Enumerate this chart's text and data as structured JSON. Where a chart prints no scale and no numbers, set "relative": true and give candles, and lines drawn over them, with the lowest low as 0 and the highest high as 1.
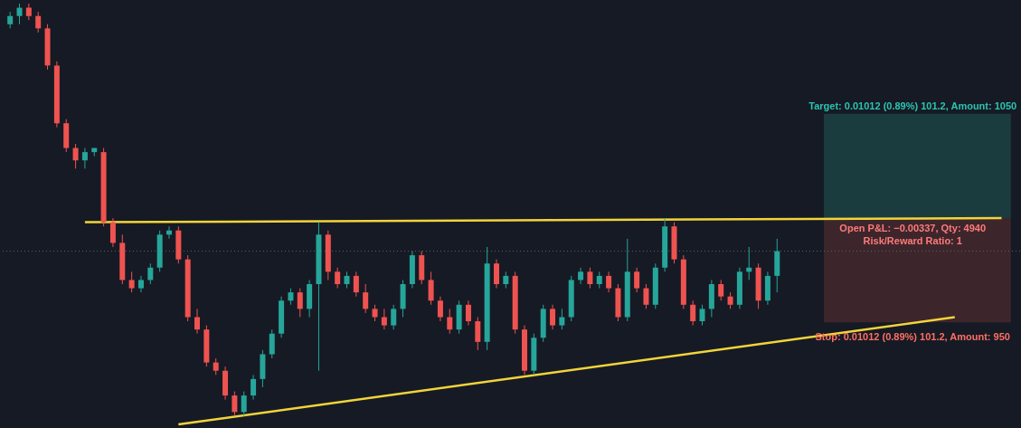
{
  "chart_data": {
    "type": "candlestick",
    "relative": true,
    "tick_labels": false,
    "categories": [
      null,
      null,
      null,
      null,
      null,
      null,
      null,
      null,
      null,
      null,
      null,
      null,
      null,
      null,
      null,
      null,
      null,
      null,
      null,
      null,
      null,
      null,
      null,
      null,
      null,
      null,
      null,
      null,
      null,
      null,
      null,
      null,
      null,
      null,
      null,
      null,
      null,
      null,
      null,
      null,
      null,
      null,
      null,
      null,
      null,
      null,
      null,
      null,
      null,
      null,
      null,
      null,
      null,
      null,
      null,
      null,
      null,
      null,
      null,
      null,
      null,
      null,
      null,
      null,
      null,
      null,
      null,
      null,
      null,
      null,
      null,
      null,
      null,
      null,
      null,
      null,
      null,
      null,
      null,
      null,
      null,
      null,
      null,
      null,
      null,
      null,
      null,
      null,
      null,
      null,
      null,
      null,
      null,
      null,
      null,
      null,
      null,
      null,
      null,
      null,
      null,
      null,
      null,
      null,
      null,
      null,
      null,
      null
    ],
    "ohlc": [
      [
        0.95,
        0.98,
        0.94,
        0.97
      ],
      [
        0.97,
        1.0,
        0.95,
        0.99
      ],
      [
        0.99,
        1.0,
        0.96,
        0.97
      ],
      [
        0.97,
        0.98,
        0.93,
        0.94
      ],
      [
        0.94,
        0.95,
        0.84,
        0.85
      ],
      [
        0.85,
        0.86,
        0.7,
        0.71
      ],
      [
        0.71,
        0.72,
        0.64,
        0.65
      ],
      [
        0.65,
        0.66,
        0.6,
        0.62
      ],
      [
        0.62,
        0.65,
        0.6,
        0.64
      ],
      [
        0.64,
        0.65,
        0.63,
        0.65
      ],
      [
        0.64,
        0.65,
        0.46,
        0.47
      ],
      [
        0.47,
        0.48,
        0.41,
        0.42
      ],
      [
        0.42,
        0.44,
        0.32,
        0.33
      ],
      [
        0.33,
        0.35,
        0.3,
        0.31
      ],
      [
        0.31,
        0.34,
        0.3,
        0.33
      ],
      [
        0.33,
        0.37,
        0.32,
        0.36
      ],
      [
        0.36,
        0.45,
        0.35,
        0.44
      ],
      [
        0.44,
        0.46,
        0.43,
        0.45
      ],
      [
        0.45,
        0.46,
        0.37,
        0.38
      ],
      [
        0.38,
        0.39,
        0.23,
        0.24
      ],
      [
        0.24,
        0.26,
        0.2,
        0.21
      ],
      [
        0.21,
        0.22,
        0.12,
        0.13
      ],
      [
        0.13,
        0.14,
        0.1,
        0.11
      ],
      [
        0.11,
        0.12,
        0.04,
        0.05
      ],
      [
        0.05,
        0.06,
        0.0,
        0.01
      ],
      [
        0.01,
        0.06,
        0.0,
        0.05
      ],
      [
        0.05,
        0.1,
        0.04,
        0.09
      ],
      [
        0.09,
        0.16,
        0.07,
        0.15
      ],
      [
        0.15,
        0.21,
        0.14,
        0.2
      ],
      [
        0.2,
        0.29,
        0.19,
        0.28
      ],
      [
        0.28,
        0.31,
        0.27,
        0.3
      ],
      [
        0.3,
        0.31,
        0.24,
        0.26
      ],
      [
        0.26,
        0.33,
        0.24,
        0.32
      ],
      [
        0.32,
        0.47,
        0.11,
        0.44
      ],
      [
        0.44,
        0.45,
        0.33,
        0.35
      ],
      [
        0.35,
        0.36,
        0.31,
        0.32
      ],
      [
        0.32,
        0.35,
        0.31,
        0.34
      ],
      [
        0.34,
        0.35,
        0.29,
        0.3
      ],
      [
        0.3,
        0.32,
        0.25,
        0.26
      ],
      [
        0.26,
        0.27,
        0.23,
        0.24
      ],
      [
        0.24,
        0.26,
        0.21,
        0.22
      ],
      [
        0.22,
        0.27,
        0.21,
        0.26
      ],
      [
        0.26,
        0.33,
        0.24,
        0.32
      ],
      [
        0.32,
        0.4,
        0.31,
        0.39
      ],
      [
        0.39,
        0.4,
        0.32,
        0.33
      ],
      [
        0.33,
        0.35,
        0.27,
        0.28
      ],
      [
        0.28,
        0.29,
        0.23,
        0.24
      ],
      [
        0.24,
        0.26,
        0.2,
        0.21
      ],
      [
        0.21,
        0.28,
        0.2,
        0.27
      ],
      [
        0.27,
        0.28,
        0.22,
        0.23
      ],
      [
        0.23,
        0.24,
        0.16,
        0.18
      ],
      [
        0.18,
        0.41,
        0.16,
        0.37
      ],
      [
        0.37,
        0.38,
        0.31,
        0.32
      ],
      [
        0.32,
        0.35,
        0.31,
        0.34
      ],
      [
        0.34,
        0.35,
        0.2,
        0.21
      ],
      [
        0.21,
        0.22,
        0.1,
        0.11
      ],
      [
        0.11,
        0.2,
        0.1,
        0.19
      ],
      [
        0.19,
        0.27,
        0.18,
        0.26
      ],
      [
        0.26,
        0.27,
        0.21,
        0.22
      ],
      [
        0.22,
        0.26,
        0.21,
        0.24
      ],
      [
        0.24,
        0.34,
        0.23,
        0.33
      ],
      [
        0.33,
        0.36,
        0.32,
        0.35
      ],
      [
        0.35,
        0.36,
        0.31,
        0.32
      ],
      [
        0.32,
        0.35,
        0.31,
        0.34
      ],
      [
        0.34,
        0.35,
        0.3,
        0.31
      ],
      [
        0.31,
        0.32,
        0.23,
        0.24
      ],
      [
        0.24,
        0.43,
        0.23,
        0.35
      ],
      [
        0.35,
        0.36,
        0.3,
        0.31
      ],
      [
        0.31,
        0.32,
        0.26,
        0.27
      ],
      [
        0.27,
        0.37,
        0.26,
        0.36
      ],
      [
        0.36,
        0.48,
        0.35,
        0.46
      ],
      [
        0.46,
        0.47,
        0.37,
        0.38
      ],
      [
        0.38,
        0.39,
        0.26,
        0.27
      ],
      [
        0.27,
        0.28,
        0.22,
        0.23
      ],
      [
        0.23,
        0.27,
        0.22,
        0.26
      ],
      [
        0.26,
        0.33,
        0.24,
        0.32
      ],
      [
        0.32,
        0.33,
        0.28,
        0.29
      ],
      [
        0.29,
        0.3,
        0.26,
        0.27
      ],
      [
        0.27,
        0.36,
        0.26,
        0.35
      ],
      [
        0.35,
        0.41,
        0.33,
        0.36
      ],
      [
        0.36,
        0.37,
        0.26,
        0.28
      ],
      [
        0.28,
        0.35,
        0.27,
        0.34
      ],
      [
        0.34,
        0.43,
        0.3,
        0.4
      ],
      null,
      null,
      null,
      null,
      null,
      null,
      null,
      null,
      null,
      null,
      null,
      null,
      null,
      null,
      null,
      null,
      null,
      null,
      null,
      null,
      null,
      null,
      null,
      null,
      null
    ],
    "colors": [
      "#26a69a",
      "#26a69a",
      "#ef5350",
      "#ef5350",
      "#ef5350",
      "#ef5350",
      "#ef5350",
      "#ef5350",
      "#26a69a",
      "#26a69a",
      "#ef5350",
      "#ef5350",
      "#ef5350",
      "#ef5350",
      "#26a69a",
      "#26a69a",
      "#26a69a",
      "#26a69a",
      "#ef5350",
      "#ef5350",
      "#ef5350",
      "#ef5350",
      "#ef5350",
      "#ef5350",
      "#ef5350",
      "#26a69a",
      "#26a69a",
      "#26a69a",
      "#26a69a",
      "#26a69a",
      "#26a69a",
      "#ef5350",
      "#26a69a",
      "#26a69a",
      "#ef5350",
      "#ef5350",
      "#26a69a",
      "#ef5350",
      "#ef5350",
      "#ef5350",
      "#ef5350",
      "#26a69a",
      "#26a69a",
      "#26a69a",
      "#ef5350",
      "#ef5350",
      "#ef5350",
      "#ef5350",
      "#26a69a",
      "#ef5350",
      "#ef5350",
      "#26a69a",
      "#ef5350",
      "#26a69a",
      "#ef5350",
      "#ef5350",
      "#26a69a",
      "#26a69a",
      "#ef5350",
      "#26a69a",
      "#26a69a",
      "#26a69a",
      "#ef5350",
      "#26a69a",
      "#ef5350",
      "#ef5350",
      "#26a69a",
      "#ef5350",
      "#ef5350",
      "#26a69a",
      "#26a69a",
      "#ef5350",
      "#ef5350",
      "#ef5350",
      "#26a69a",
      "#26a69a",
      "#ef5350",
      "#ef5350",
      "#26a69a",
      "#26a69a",
      "#ef5350",
      "#26a69a",
      "#26a69a",
      null,
      null,
      null,
      null,
      null,
      null,
      null,
      null,
      null,
      null,
      null,
      null,
      null,
      null,
      null,
      null,
      null,
      null,
      null,
      null,
      null,
      null,
      null,
      null,
      null
    ],
    "series": [
      {
        "type": "line",
        "color": "#1b3c3f",
        "values": [
          null,
          null,
          null,
          null,
          null,
          null,
          null,
          null,
          null,
          null,
          null,
          null,
          null,
          null,
          null,
          null,
          null,
          null,
          null,
          null,
          null,
          null,
          null,
          null,
          null,
          null,
          null,
          null,
          null,
          null,
          null,
          null,
          null,
          null,
          null,
          null,
          null,
          null,
          null,
          null,
          null,
          null,
          null,
          null,
          null,
          null,
          null,
          null,
          null,
          null,
          null,
          null,
          null,
          null,
          null,
          null,
          null,
          null,
          null,
          null,
          null,
          null,
          null,
          null,
          null,
          null,
          null,
          null,
          null,
          null,
          null,
          null,
          null,
          null,
          null,
          null,
          null,
          null,
          null,
          null,
          null,
          null,
          null,
          null,
          null,
          null,
          null,
          0.73,
          null,
          null,
          null,
          null,
          null,
          null,
          null,
          null,
          null,
          null,
          null,
          null,
          null,
          null,
          null,
          null,
          null,
          null,
          null,
          0.73
        ],
        "lower": [
          null,
          null,
          null,
          null,
          null,
          null,
          null,
          null,
          null,
          null,
          null,
          null,
          null,
          null,
          null,
          null,
          null,
          null,
          null,
          null,
          null,
          null,
          null,
          null,
          null,
          null,
          null,
          null,
          null,
          null,
          null,
          null,
          null,
          null,
          null,
          null,
          null,
          null,
          null,
          null,
          null,
          null,
          null,
          null,
          null,
          null,
          null,
          null,
          null,
          null,
          null,
          null,
          null,
          null,
          null,
          null,
          null,
          null,
          null,
          null,
          null,
          null,
          null,
          null,
          null,
          null,
          null,
          null,
          null,
          null,
          null,
          null,
          null,
          null,
          null,
          null,
          null,
          null,
          null,
          null,
          null,
          null,
          null,
          null,
          null,
          null,
          null,
          0.48,
          null,
          null,
          null,
          null,
          null,
          null,
          null,
          null,
          null,
          null,
          null,
          null,
          null,
          null,
          null,
          null,
          null,
          null,
          null,
          0.48
        ],
        "upper": [
          null,
          null,
          null,
          null,
          null,
          null,
          null,
          null,
          null,
          null,
          null,
          null,
          null,
          null,
          null,
          null,
          null,
          null,
          null,
          null,
          null,
          null,
          null,
          null,
          null,
          null,
          null,
          null,
          null,
          null,
          null,
          null,
          null,
          null,
          null,
          null,
          null,
          null,
          null,
          null,
          null,
          null,
          null,
          null,
          null,
          null,
          null,
          null,
          null,
          null,
          null,
          null,
          null,
          null,
          null,
          null,
          null,
          null,
          null,
          null,
          null,
          null,
          null,
          null,
          null,
          null,
          null,
          null,
          null,
          null,
          null,
          null,
          null,
          null,
          null,
          null,
          null,
          null,
          null,
          null,
          null,
          null,
          null,
          null,
          null,
          null,
          null,
          0.73,
          null,
          null,
          null,
          null,
          null,
          null,
          null,
          null,
          null,
          null,
          null,
          null,
          null,
          null,
          null,
          null,
          null,
          null,
          null,
          0.73
        ]
      },
      {
        "type": "line",
        "color": "#3d262b",
        "values": [
          null,
          null,
          null,
          null,
          null,
          null,
          null,
          null,
          null,
          null,
          null,
          null,
          null,
          null,
          null,
          null,
          null,
          null,
          null,
          null,
          null,
          null,
          null,
          null,
          null,
          null,
          null,
          null,
          null,
          null,
          null,
          null,
          null,
          null,
          null,
          null,
          null,
          null,
          null,
          null,
          null,
          null,
          null,
          null,
          null,
          null,
          null,
          null,
          null,
          null,
          null,
          null,
          null,
          null,
          null,
          null,
          null,
          null,
          null,
          null,
          null,
          null,
          null,
          null,
          null,
          null,
          null,
          null,
          null,
          null,
          null,
          null,
          null,
          null,
          null,
          null,
          null,
          null,
          null,
          null,
          null,
          null,
          null,
          null,
          null,
          null,
          null,
          0.23,
          null,
          null,
          null,
          null,
          null,
          null,
          null,
          null,
          null,
          null,
          null,
          null,
          null,
          null,
          null,
          null,
          null,
          null,
          null,
          0.23
        ],
        "lower": [
          null,
          null,
          null,
          null,
          null,
          null,
          null,
          null,
          null,
          null,
          null,
          null,
          null,
          null,
          null,
          null,
          null,
          null,
          null,
          null,
          null,
          null,
          null,
          null,
          null,
          null,
          null,
          null,
          null,
          null,
          null,
          null,
          null,
          null,
          null,
          null,
          null,
          null,
          null,
          null,
          null,
          null,
          null,
          null,
          null,
          null,
          null,
          null,
          null,
          null,
          null,
          null,
          null,
          null,
          null,
          null,
          null,
          null,
          null,
          null,
          null,
          null,
          null,
          null,
          null,
          null,
          null,
          null,
          null,
          null,
          null,
          null,
          null,
          null,
          null,
          null,
          null,
          null,
          null,
          null,
          null,
          null,
          null,
          null,
          null,
          null,
          null,
          0.23,
          null,
          null,
          null,
          null,
          null,
          null,
          null,
          null,
          null,
          null,
          null,
          null,
          null,
          null,
          null,
          null,
          null,
          null,
          null,
          0.23
        ],
        "upper": [
          null,
          null,
          null,
          null,
          null,
          null,
          null,
          null,
          null,
          null,
          null,
          null,
          null,
          null,
          null,
          null,
          null,
          null,
          null,
          null,
          null,
          null,
          null,
          null,
          null,
          null,
          null,
          null,
          null,
          null,
          null,
          null,
          null,
          null,
          null,
          null,
          null,
          null,
          null,
          null,
          null,
          null,
          null,
          null,
          null,
          null,
          null,
          null,
          null,
          null,
          null,
          null,
          null,
          null,
          null,
          null,
          null,
          null,
          null,
          null,
          null,
          null,
          null,
          null,
          null,
          null,
          null,
          null,
          null,
          null,
          null,
          null,
          null,
          null,
          null,
          null,
          null,
          null,
          null,
          null,
          null,
          null,
          null,
          null,
          null,
          null,
          null,
          0.48,
          null,
          null,
          null,
          null,
          null,
          null,
          null,
          null,
          null,
          null,
          null,
          null,
          null,
          null,
          null,
          null,
          null,
          null,
          null,
          0.48
        ]
      },
      {
        "type": "line",
        "color": "#f2d43a",
        "values": [
          null,
          null,
          null,
          null,
          null,
          null,
          null,
          null,
          0.47,
          null,
          null,
          null,
          null,
          null,
          null,
          null,
          null,
          null,
          null,
          null,
          null,
          null,
          null,
          null,
          null,
          null,
          null,
          null,
          null,
          null,
          null,
          null,
          null,
          null,
          null,
          null,
          null,
          null,
          null,
          null,
          null,
          null,
          null,
          null,
          null,
          null,
          null,
          null,
          null,
          null,
          null,
          null,
          null,
          null,
          null,
          null,
          null,
          null,
          null,
          null,
          null,
          null,
          null,
          null,
          null,
          null,
          null,
          null,
          null,
          null,
          null,
          null,
          null,
          null,
          null,
          null,
          null,
          null,
          null,
          null,
          null,
          null,
          null,
          null,
          null,
          null,
          null,
          null,
          null,
          null,
          null,
          null,
          null,
          null,
          null,
          null,
          null,
          null,
          null,
          null,
          null,
          null,
          null,
          null,
          null,
          null,
          0.48,
          null
        ]
      },
      {
        "type": "line",
        "color": "#f2d43a",
        "values": [
          null,
          null,
          null,
          null,
          null,
          null,
          null,
          null,
          null,
          null,
          null,
          null,
          null,
          null,
          null,
          null,
          null,
          null,
          -0.02,
          null,
          null,
          null,
          null,
          null,
          null,
          null,
          null,
          null,
          null,
          null,
          null,
          null,
          null,
          null,
          null,
          null,
          null,
          null,
          null,
          null,
          null,
          null,
          null,
          null,
          null,
          null,
          null,
          null,
          null,
          null,
          null,
          null,
          null,
          null,
          null,
          null,
          null,
          null,
          null,
          null,
          null,
          null,
          null,
          null,
          null,
          null,
          null,
          null,
          null,
          null,
          null,
          null,
          null,
          null,
          null,
          null,
          null,
          null,
          null,
          null,
          null,
          null,
          null,
          null,
          null,
          null,
          null,
          null,
          null,
          null,
          null,
          null,
          null,
          null,
          null,
          null,
          null,
          null,
          null,
          null,
          null,
          0.24,
          null,
          null,
          null,
          null,
          null,
          null
        ]
      }
    ],
    "ref_lines": [
      {
        "axis": "y",
        "value": 0.4,
        "color": "#5d606b",
        "line_style": "dotted"
      }
    ],
    "annotations": [
      {
        "text": "Target: 0.01012 (0.89%) 101.2, Amount: 1050",
        "y": 0.73
      },
      {
        "text": "Open P&L: −0.00337, Qty: 4940\nRisk/Reward Ratio: 1",
        "y": 0.48
      },
      {
        "text": "Stop: 0.01012 (0.89%) 101.2, Amount: 950",
        "y": 0.23
      }
    ]
  }
}
